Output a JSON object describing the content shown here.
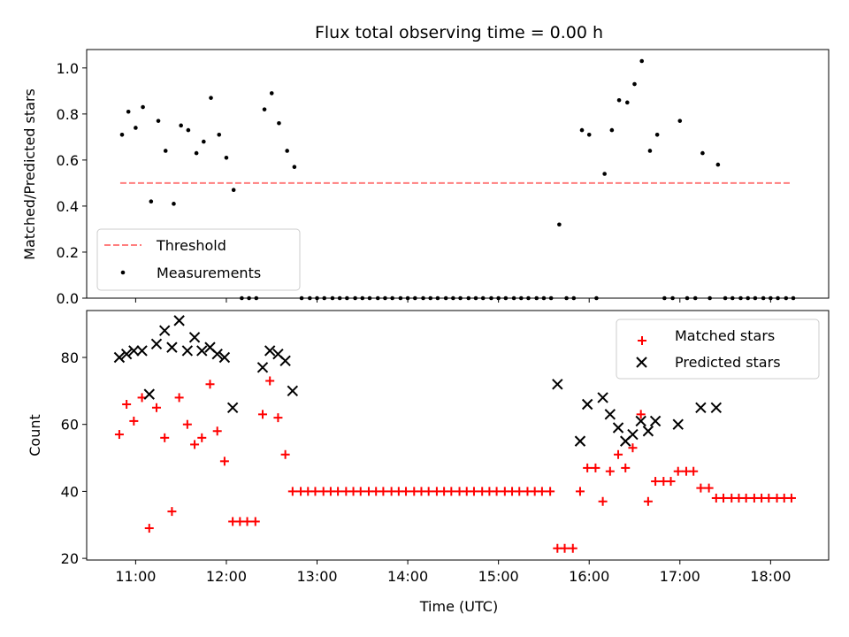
{
  "chart_data": [
    {
      "type": "scatter",
      "title": "Flux total observing time = 0.00 h",
      "xlabel": "",
      "ylabel": "Matched/Predicted stars",
      "xlim": [
        10.46,
        18.64
      ],
      "ylim": [
        0.0,
        1.08
      ],
      "yticks": [
        0.0,
        0.2,
        0.4,
        0.6,
        0.8,
        1.0
      ],
      "ytick_labels": [
        "0.0",
        "0.2",
        "0.4",
        "0.6",
        "0.8",
        "1.0"
      ],
      "legend_position": "lower-left",
      "series": [
        {
          "name": "Threshold",
          "kind": "dashed-line",
          "color": "#ff7f7f",
          "x": [
            10.83,
            18.23
          ],
          "y": [
            0.5,
            0.5
          ]
        },
        {
          "name": "Measurements",
          "kind": "dot",
          "color": "#000000",
          "x": [
            10.85,
            10.92,
            11.0,
            11.08,
            11.17,
            11.25,
            11.33,
            11.42,
            11.5,
            11.58,
            11.67,
            11.75,
            11.83,
            11.92,
            12.0,
            12.08,
            12.17,
            12.25,
            12.33,
            12.42,
            12.5,
            12.58,
            12.67,
            12.75,
            12.83,
            12.92,
            13.0,
            13.08,
            13.17,
            13.25,
            13.33,
            13.42,
            13.5,
            13.58,
            13.67,
            13.75,
            13.83,
            13.92,
            14.0,
            14.08,
            14.17,
            14.25,
            14.33,
            14.42,
            14.5,
            14.58,
            14.67,
            14.75,
            14.83,
            14.92,
            15.0,
            15.08,
            15.17,
            15.25,
            15.33,
            15.42,
            15.5,
            15.58,
            15.67,
            15.75,
            15.83,
            15.92,
            16.0,
            16.08,
            16.17,
            16.25,
            16.33,
            16.42,
            16.5,
            16.58,
            16.67,
            16.75,
            16.83,
            16.92,
            17.0,
            17.08,
            17.17,
            17.25,
            17.33,
            17.42,
            17.5,
            17.58,
            17.67,
            17.75,
            17.83,
            17.92,
            18.0,
            18.08,
            18.17,
            18.25
          ],
          "y": [
            0.71,
            0.81,
            0.74,
            0.83,
            0.42,
            0.77,
            0.64,
            0.41,
            0.75,
            0.73,
            0.63,
            0.68,
            0.87,
            0.71,
            0.61,
            0.47,
            0.0,
            0.0,
            0.0,
            0.82,
            0.89,
            0.76,
            0.64,
            0.57,
            0.0,
            0.0,
            0.0,
            0.0,
            0.0,
            0.0,
            0.0,
            0.0,
            0.0,
            0.0,
            0.0,
            0.0,
            0.0,
            0.0,
            0.0,
            0.0,
            0.0,
            0.0,
            0.0,
            0.0,
            0.0,
            0.0,
            0.0,
            0.0,
            0.0,
            0.0,
            0.0,
            0.0,
            0.0,
            0.0,
            0.0,
            0.0,
            0.0,
            0.0,
            0.32,
            0.0,
            0.0,
            0.73,
            0.71,
            0.0,
            0.54,
            0.73,
            0.86,
            0.85,
            0.93,
            1.03,
            0.64,
            0.71,
            0.0,
            0.0,
            0.77,
            0.0,
            0.0,
            0.63,
            0.0,
            0.58,
            0.0,
            0.0,
            0.0,
            0.0,
            0.0,
            0.0,
            0.0,
            0.0,
            0.0,
            0.0
          ]
        }
      ]
    },
    {
      "type": "scatter",
      "title": "",
      "xlabel": "Time (UTC)",
      "ylabel": "Count",
      "xlim": [
        10.46,
        18.64
      ],
      "ylim": [
        19.5,
        94.0
      ],
      "yticks": [
        20,
        40,
        60,
        80
      ],
      "ytick_labels": [
        "20",
        "40",
        "60",
        "80"
      ],
      "xticks": [
        11,
        12,
        13,
        14,
        15,
        16,
        17,
        18
      ],
      "xtick_labels": [
        "11:00",
        "12:00",
        "13:00",
        "14:00",
        "15:00",
        "16:00",
        "17:00",
        "18:00"
      ],
      "legend_position": "upper-right",
      "series": [
        {
          "name": "Matched stars",
          "marker": "plus",
          "color": "#ff0000",
          "x": [
            10.82,
            10.9,
            10.98,
            11.07,
            11.15,
            11.23,
            11.32,
            11.4,
            11.48,
            11.57,
            11.65,
            11.73,
            11.82,
            11.9,
            11.98,
            12.07,
            12.15,
            12.23,
            12.32,
            12.4,
            12.48,
            12.57,
            12.65,
            12.73,
            12.82,
            12.9,
            12.98,
            13.07,
            13.15,
            13.23,
            13.32,
            13.4,
            13.48,
            13.57,
            13.65,
            13.73,
            13.82,
            13.9,
            13.98,
            14.07,
            14.15,
            14.23,
            14.32,
            14.4,
            14.48,
            14.57,
            14.65,
            14.73,
            14.82,
            14.9,
            14.98,
            15.07,
            15.15,
            15.23,
            15.32,
            15.4,
            15.48,
            15.57,
            15.65,
            15.73,
            15.82,
            15.9,
            15.98,
            16.07,
            16.15,
            16.23,
            16.32,
            16.4,
            16.48,
            16.57,
            16.65,
            16.73,
            16.82,
            16.9,
            16.98,
            17.07,
            17.15,
            17.23,
            17.32,
            17.4,
            17.48,
            17.57,
            17.65,
            17.73,
            17.82,
            17.9,
            17.98,
            18.07,
            18.15,
            18.23
          ],
          "y": [
            57,
            66,
            61,
            68,
            29,
            65,
            56,
            34,
            68,
            60,
            54,
            56,
            72,
            58,
            49,
            31,
            31,
            31,
            31,
            63,
            73,
            62,
            51,
            40,
            40,
            40,
            40,
            40,
            40,
            40,
            40,
            40,
            40,
            40,
            40,
            40,
            40,
            40,
            40,
            40,
            40,
            40,
            40,
            40,
            40,
            40,
            40,
            40,
            40,
            40,
            40,
            40,
            40,
            40,
            40,
            40,
            40,
            40,
            23,
            23,
            23,
            40,
            47,
            47,
            37,
            46,
            51,
            47,
            53,
            63,
            37,
            43,
            43,
            43,
            46,
            46,
            46,
            41,
            41,
            38,
            38,
            38,
            38,
            38,
            38,
            38,
            38,
            38,
            38,
            38
          ]
        },
        {
          "name": "Predicted stars",
          "marker": "x",
          "color": "#000000",
          "x": [
            10.82,
            10.9,
            10.98,
            11.07,
            11.15,
            11.23,
            11.32,
            11.4,
            11.48,
            11.57,
            11.65,
            11.73,
            11.82,
            11.9,
            11.98,
            12.07,
            12.4,
            12.48,
            12.57,
            12.65,
            12.73,
            15.65,
            15.9,
            15.98,
            16.15,
            16.23,
            16.32,
            16.4,
            16.48,
            16.57,
            16.65,
            16.73,
            16.98,
            17.23,
            17.4
          ],
          "y": [
            80,
            81,
            82,
            82,
            69,
            84,
            88,
            83,
            91,
            82,
            86,
            82,
            83,
            81,
            80,
            65,
            77,
            82,
            81,
            79,
            70,
            72,
            55,
            66,
            68,
            63,
            59,
            55,
            57,
            61,
            58,
            61,
            60,
            65,
            65
          ]
        }
      ]
    }
  ]
}
